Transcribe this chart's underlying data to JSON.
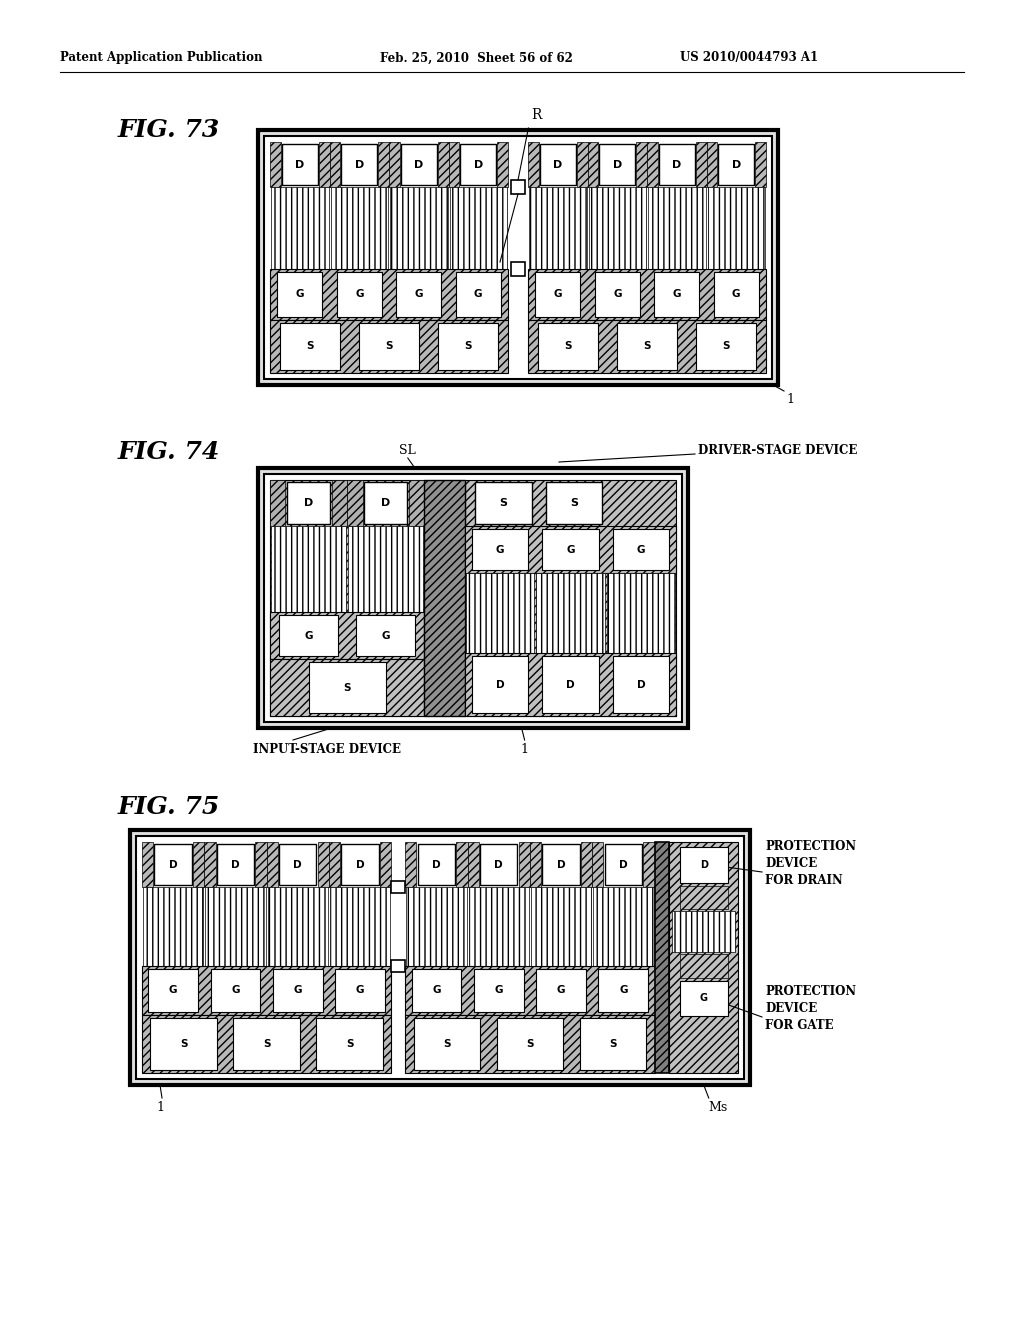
{
  "header_left": "Patent Application Publication",
  "header_mid": "Feb. 25, 2010  Sheet 56 of 62",
  "header_right": "US 2010/0044793 A1",
  "fig73_title": "FIG. 73",
  "fig74_title": "FIG. 74",
  "fig75_title": "FIG. 75",
  "bg_color": "#ffffff",
  "label_R": "R",
  "label_SL": "SL",
  "label_1": "1",
  "label_Ms": "Ms",
  "label_driver": "DRIVER-STAGE DEVICE",
  "label_input": "INPUT-STAGE DEVICE",
  "label_prot_drain": "PROTECTION\nDEVICE\nFOR DRAIN",
  "label_prot_gate": "PROTECTION\nDEVICE\nFOR GATE"
}
